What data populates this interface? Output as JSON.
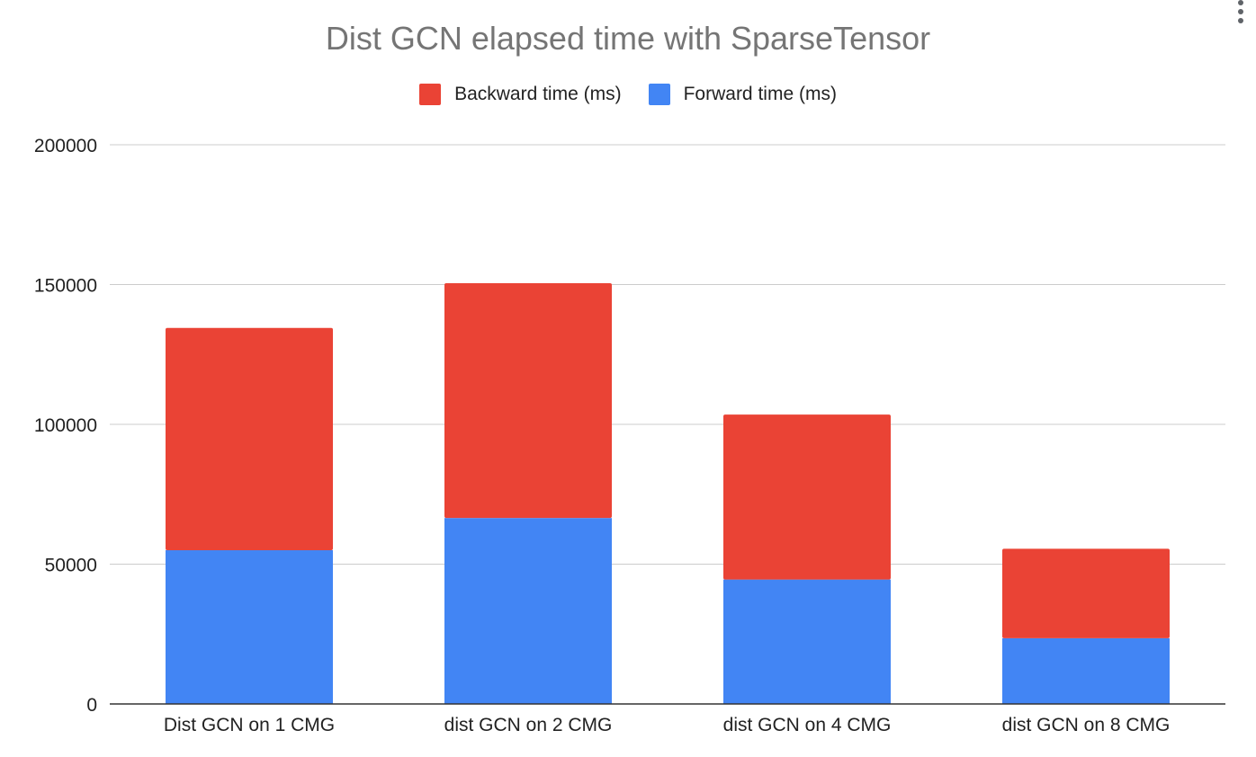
{
  "chart_data": {
    "type": "bar",
    "stacked": true,
    "title": "Dist GCN elapsed time with SparseTensor",
    "xlabel": "",
    "ylabel": "",
    "categories": [
      "Dist GCN on 1 CMG",
      "dist GCN on 2 CMG",
      "dist GCN on 4 CMG",
      "dist GCN on 8 CMG"
    ],
    "series": [
      {
        "name": "Forward time (ms)",
        "color": "#4285F4",
        "values": [
          55000,
          66500,
          44500,
          23500
        ]
      },
      {
        "name": "Backward time (ms)",
        "color": "#EA4335",
        "values": [
          79500,
          84000,
          59000,
          32000
        ]
      }
    ],
    "legend_order": [
      "Backward time (ms)",
      "Forward time (ms)"
    ],
    "legend_position": "top",
    "ylim": [
      0,
      200000
    ],
    "yticks": [
      0,
      50000,
      100000,
      150000,
      200000
    ],
    "ytick_labels": [
      "0",
      "50000",
      "100000",
      "150000",
      "200000"
    ],
    "grid": true
  },
  "menu_icon": "more-vert-icon"
}
